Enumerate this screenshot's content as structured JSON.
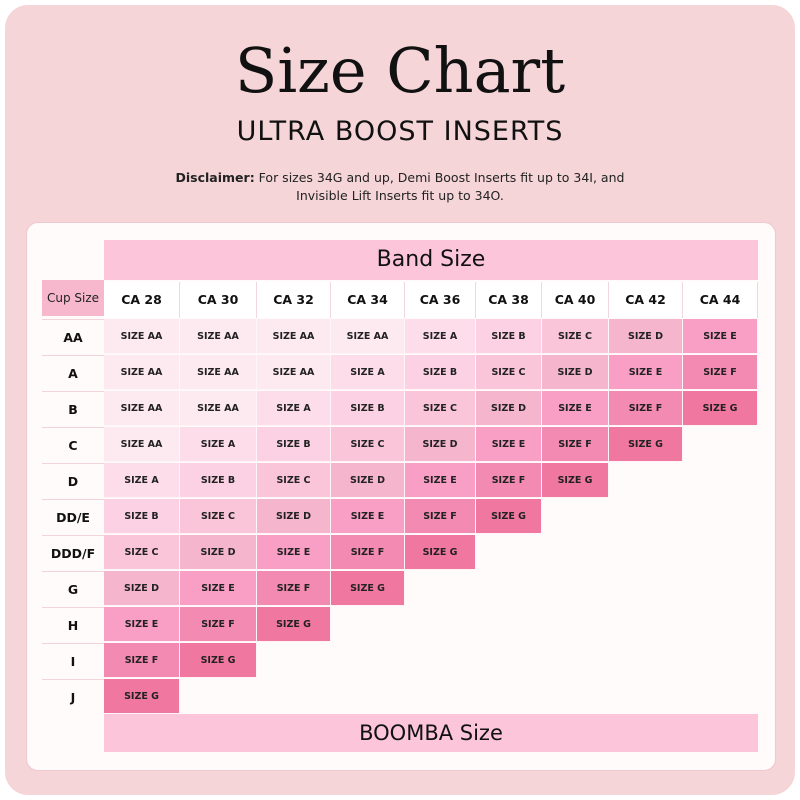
{
  "header": {
    "title": "Size Chart",
    "subtitle": "ULTRA BOOST INSERTS",
    "disclaimer_label": "Disclaimer:",
    "disclaimer_text": " For sizes 34G and up, Demi Boost Inserts fit up to 34I, and Invisible Lift Inserts fit up to 34O."
  },
  "table": {
    "band_title": "Band Size",
    "footer_title": "BOOMBA Size",
    "cup_header": "Cup Size",
    "columns": [
      "CA 28",
      "CA 30",
      "CA 32",
      "CA 34",
      "CA 36",
      "CA 38",
      "CA 40",
      "CA 42",
      "CA 44"
    ],
    "rows": [
      {
        "cup": "AA",
        "sizes": [
          "SIZE AA",
          "SIZE AA",
          "SIZE AA",
          "SIZE AA",
          "SIZE A",
          "SIZE B",
          "SIZE C",
          "SIZE D",
          "SIZE E"
        ]
      },
      {
        "cup": "A",
        "sizes": [
          "SIZE AA",
          "SIZE AA",
          "SIZE AA",
          "SIZE A",
          "SIZE B",
          "SIZE C",
          "SIZE D",
          "SIZE E",
          "SIZE F"
        ]
      },
      {
        "cup": "B",
        "sizes": [
          "SIZE AA",
          "SIZE AA",
          "SIZE A",
          "SIZE B",
          "SIZE C",
          "SIZE D",
          "SIZE E",
          "SIZE F",
          "SIZE G"
        ]
      },
      {
        "cup": "C",
        "sizes": [
          "SIZE AA",
          "SIZE A",
          "SIZE B",
          "SIZE C",
          "SIZE D",
          "SIZE E",
          "SIZE F",
          "SIZE G"
        ]
      },
      {
        "cup": "D",
        "sizes": [
          "SIZE A",
          "SIZE B",
          "SIZE C",
          "SIZE D",
          "SIZE E",
          "SIZE F",
          "SIZE G"
        ]
      },
      {
        "cup": "DD/E",
        "sizes": [
          "SIZE B",
          "SIZE C",
          "SIZE D",
          "SIZE E",
          "SIZE F",
          "SIZE G"
        ]
      },
      {
        "cup": "DDD/F",
        "sizes": [
          "SIZE C",
          "SIZE D",
          "SIZE E",
          "SIZE F",
          "SIZE G"
        ]
      },
      {
        "cup": "G",
        "sizes": [
          "SIZE D",
          "SIZE E",
          "SIZE F",
          "SIZE G"
        ]
      },
      {
        "cup": "H",
        "sizes": [
          "SIZE E",
          "SIZE F",
          "SIZE G"
        ]
      },
      {
        "cup": "I",
        "sizes": [
          "SIZE F",
          "SIZE G"
        ]
      },
      {
        "cup": "J",
        "sizes": [
          "SIZE G"
        ]
      }
    ],
    "size_colors": {
      "SIZE AA": "#fde9f0",
      "SIZE A": "#fddde9",
      "SIZE B": "#fcd1e3",
      "SIZE C": "#fbc5d9",
      "SIZE D": "#f5b5cc",
      "SIZE E": "#f99fc5",
      "SIZE F": "#f38ab1",
      "SIZE G": "#f0779f"
    }
  }
}
